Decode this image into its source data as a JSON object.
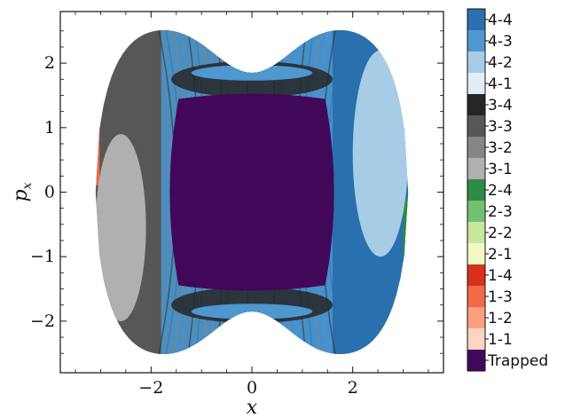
{
  "chart_data": {
    "type": "scatter",
    "xlabel": "x",
    "ylabel": "p",
    "ylabel_subscript": "x",
    "xlim": [
      -3.8,
      3.8
    ],
    "ylim": [
      -2.8,
      2.8
    ],
    "xticks": [
      -2,
      0,
      2
    ],
    "yticks": [
      -2,
      -1,
      0,
      1,
      2
    ],
    "xtick_labels": [
      "−2",
      "0",
      "2"
    ],
    "ytick_labels": [
      "−2",
      "−1",
      "0",
      "1",
      "2"
    ],
    "legend_position": "right",
    "regions": [
      {
        "name": "Trapped",
        "x_range": [
          -1.7,
          1.7
        ],
        "y_range": [
          -1.5,
          1.5
        ]
      },
      {
        "name": "3-1",
        "x_range": [
          -3.1,
          -2.1
        ],
        "y_range": [
          -2.0,
          0.9
        ]
      },
      {
        "name": "4-2",
        "x_range": [
          2.0,
          3.1
        ],
        "y_range": [
          -1.0,
          2.2
        ]
      }
    ],
    "legend": [
      {
        "label": "4-4",
        "color": "#2a6fae"
      },
      {
        "label": "4-3",
        "color": "#4e97cf"
      },
      {
        "label": "4-2",
        "color": "#a6cce6"
      },
      {
        "label": "4-1",
        "color": "#e1edf8"
      },
      {
        "label": "3-4",
        "color": "#262626"
      },
      {
        "label": "3-3",
        "color": "#575757"
      },
      {
        "label": "3-2",
        "color": "#868686"
      },
      {
        "label": "3-1",
        "color": "#b0b0b0"
      },
      {
        "label": "2-4",
        "color": "#2e8b43"
      },
      {
        "label": "2-3",
        "color": "#74c073"
      },
      {
        "label": "2-2",
        "color": "#c7e69e"
      },
      {
        "label": "2-1",
        "color": "#f1f9c3"
      },
      {
        "label": "1-4",
        "color": "#d7301f"
      },
      {
        "label": "1-3",
        "color": "#f26a45"
      },
      {
        "label": "1-2",
        "color": "#fba07f"
      },
      {
        "label": "1-1",
        "color": "#fdd3c1"
      },
      {
        "label": "Trapped",
        "color": "#41085a"
      }
    ]
  }
}
